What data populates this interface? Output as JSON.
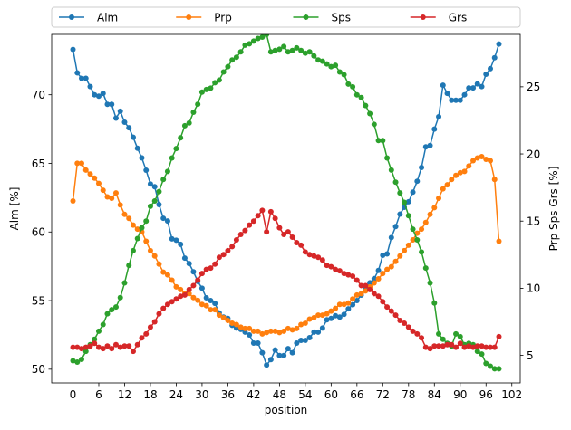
{
  "chart_data": {
    "type": "line",
    "xlabel": "position",
    "ylabel_left": "Alm [%]",
    "ylabel_right": "Prp Sps Grs [%]",
    "x_ticks": [
      0,
      6,
      12,
      18,
      24,
      30,
      36,
      42,
      48,
      54,
      60,
      66,
      72,
      78,
      84,
      90,
      96,
      102
    ],
    "y_left_ticks": [
      50,
      55,
      60,
      65,
      70
    ],
    "y_right_ticks": [
      5,
      10,
      15,
      20,
      25
    ],
    "xlim": [
      -4.95,
      103.95
    ],
    "ylim_left": [
      49.0,
      74.4
    ],
    "ylim_right": [
      2.95,
      28.9
    ],
    "grid": false,
    "legend": {
      "placement": "top, above plot",
      "columns": 4
    },
    "marker": "circle",
    "series": [
      {
        "name": "Alm",
        "axis": "left",
        "color": "#1f77b4",
        "x": [
          0,
          1,
          2,
          3,
          4,
          5,
          6,
          7,
          8,
          9,
          10,
          11,
          12,
          13,
          14,
          15,
          16,
          17,
          18,
          19,
          20,
          21,
          22,
          23,
          24,
          25,
          26,
          27,
          28,
          29,
          30,
          31,
          32,
          33,
          34,
          35,
          36,
          37,
          38,
          39,
          40,
          41,
          42,
          43,
          44,
          45,
          46,
          47,
          48,
          49,
          50,
          51,
          52,
          53,
          54,
          55,
          56,
          57,
          58,
          59,
          60,
          61,
          62,
          63,
          64,
          65,
          66,
          67,
          68,
          69,
          70,
          71,
          72,
          73,
          74,
          75,
          76,
          77,
          78,
          79,
          80,
          81,
          82,
          83,
          84,
          85,
          86,
          87,
          88,
          89,
          90,
          91,
          92,
          93,
          94,
          95,
          96,
          97,
          98,
          99
        ],
        "values": [
          73.3,
          71.6,
          71.2,
          71.2,
          70.6,
          70.0,
          69.9,
          70.1,
          69.3,
          69.3,
          68.3,
          68.8,
          68.0,
          67.6,
          66.9,
          66.1,
          65.4,
          64.5,
          63.5,
          63.3,
          62.0,
          61.0,
          60.8,
          59.5,
          59.4,
          59.1,
          58.1,
          57.7,
          57.1,
          56.4,
          55.9,
          55.2,
          55.0,
          54.8,
          54.1,
          53.8,
          53.7,
          53.2,
          53.0,
          52.9,
          52.7,
          52.5,
          51.9,
          51.9,
          51.2,
          50.3,
          50.7,
          51.4,
          51.0,
          51.0,
          51.5,
          51.2,
          51.9,
          52.1,
          52.1,
          52.3,
          52.7,
          52.7,
          53.0,
          53.6,
          53.7,
          53.9,
          53.8,
          54.0,
          54.4,
          54.7,
          55.0,
          55.4,
          55.9,
          56.3,
          56.6,
          57.2,
          58.3,
          58.4,
          59.6,
          60.4,
          61.3,
          61.8,
          62.2,
          62.9,
          63.7,
          64.7,
          66.2,
          66.3,
          67.5,
          68.4,
          70.7,
          70.1,
          69.6,
          69.6,
          69.6,
          70.0,
          70.5,
          70.5,
          70.8,
          70.6,
          71.5,
          71.9,
          72.7,
          73.7
        ]
      },
      {
        "name": "Prp",
        "axis": "right",
        "color": "#ff7f0e",
        "x": [
          0,
          1,
          2,
          3,
          4,
          5,
          6,
          7,
          8,
          9,
          10,
          11,
          12,
          13,
          14,
          15,
          16,
          17,
          18,
          19,
          20,
          21,
          22,
          23,
          24,
          25,
          26,
          27,
          28,
          29,
          30,
          31,
          32,
          33,
          34,
          35,
          36,
          37,
          38,
          39,
          40,
          41,
          42,
          43,
          44,
          45,
          46,
          47,
          48,
          49,
          50,
          51,
          52,
          53,
          54,
          55,
          56,
          57,
          58,
          59,
          60,
          61,
          62,
          63,
          64,
          65,
          66,
          67,
          68,
          69,
          70,
          71,
          72,
          73,
          74,
          75,
          76,
          77,
          78,
          79,
          80,
          81,
          82,
          83,
          84,
          85,
          86,
          87,
          88,
          89,
          90,
          91,
          92,
          93,
          94,
          95,
          96,
          97,
          98,
          99
        ],
        "values": [
          16.5,
          19.3,
          19.3,
          18.8,
          18.5,
          18.2,
          17.8,
          17.3,
          16.8,
          16.7,
          17.1,
          16.2,
          15.5,
          15.2,
          14.7,
          14.4,
          14.2,
          13.5,
          12.8,
          12.4,
          11.8,
          11.2,
          11.0,
          10.6,
          10.1,
          9.9,
          9.6,
          9.6,
          9.3,
          9.1,
          8.8,
          8.7,
          8.4,
          8.4,
          8.0,
          7.8,
          7.6,
          7.4,
          7.3,
          7.1,
          7.0,
          7.0,
          6.8,
          6.8,
          6.6,
          6.7,
          6.8,
          6.8,
          6.7,
          6.8,
          7.0,
          6.9,
          7.0,
          7.3,
          7.4,
          7.7,
          7.8,
          8.0,
          8.0,
          8.1,
          8.3,
          8.5,
          8.8,
          8.8,
          8.9,
          9.2,
          9.5,
          9.6,
          9.8,
          10.1,
          10.4,
          10.7,
          11.1,
          11.4,
          11.6,
          12.0,
          12.4,
          12.8,
          13.2,
          13.6,
          14.1,
          14.4,
          14.9,
          15.5,
          16.0,
          16.7,
          17.4,
          17.7,
          18.1,
          18.4,
          18.6,
          18.7,
          19.1,
          19.5,
          19.7,
          19.8,
          19.6,
          19.5,
          18.1,
          13.5
        ]
      },
      {
        "name": "Sps",
        "axis": "right",
        "color": "#2ca02c",
        "x": [
          0,
          1,
          2,
          3,
          4,
          5,
          6,
          7,
          8,
          9,
          10,
          11,
          12,
          13,
          14,
          15,
          16,
          17,
          18,
          19,
          20,
          21,
          22,
          23,
          24,
          25,
          26,
          27,
          28,
          29,
          30,
          31,
          32,
          33,
          34,
          35,
          36,
          37,
          38,
          39,
          40,
          41,
          42,
          43,
          44,
          45,
          46,
          47,
          48,
          49,
          50,
          51,
          52,
          53,
          54,
          55,
          56,
          57,
          58,
          59,
          60,
          61,
          62,
          63,
          64,
          65,
          66,
          67,
          68,
          69,
          70,
          71,
          72,
          73,
          74,
          75,
          76,
          77,
          78,
          79,
          80,
          81,
          82,
          83,
          84,
          85,
          86,
          87,
          88,
          89,
          90,
          91,
          92,
          93,
          94,
          95,
          96,
          97,
          98,
          99
        ],
        "values": [
          4.6,
          4.5,
          4.7,
          5.3,
          5.8,
          6.2,
          6.8,
          7.3,
          8.1,
          8.4,
          8.6,
          9.3,
          10.4,
          11.7,
          12.8,
          13.7,
          14.5,
          15.0,
          16.1,
          16.5,
          17.2,
          18.1,
          18.7,
          19.7,
          20.4,
          21.2,
          22.1,
          22.3,
          23.1,
          23.7,
          24.6,
          24.8,
          24.9,
          25.3,
          25.5,
          26.1,
          26.5,
          27.0,
          27.2,
          27.6,
          28.1,
          28.2,
          28.4,
          28.6,
          28.7,
          28.9,
          27.6,
          27.7,
          27.8,
          28.0,
          27.6,
          27.7,
          27.9,
          27.7,
          27.5,
          27.6,
          27.3,
          27.0,
          26.9,
          26.7,
          26.5,
          26.6,
          26.1,
          25.9,
          25.2,
          25.0,
          24.4,
          24.2,
          23.6,
          23.0,
          22.2,
          21.0,
          21.0,
          19.7,
          18.8,
          17.9,
          17.1,
          16.4,
          15.4,
          14.4,
          13.6,
          12.7,
          11.5,
          10.4,
          8.9,
          6.6,
          6.2,
          5.9,
          5.7,
          6.6,
          6.4,
          5.8,
          5.9,
          5.8,
          5.3,
          5.1,
          4.4,
          4.2,
          4.0,
          4.0
        ]
      },
      {
        "name": "Grs",
        "axis": "right",
        "color": "#d62728",
        "x": [
          0,
          1,
          2,
          3,
          4,
          5,
          6,
          7,
          8,
          9,
          10,
          11,
          12,
          13,
          14,
          15,
          16,
          17,
          18,
          19,
          20,
          21,
          22,
          23,
          24,
          25,
          26,
          27,
          28,
          29,
          30,
          31,
          32,
          33,
          34,
          35,
          36,
          37,
          38,
          39,
          40,
          41,
          42,
          43,
          44,
          45,
          46,
          47,
          48,
          49,
          50,
          51,
          52,
          53,
          54,
          55,
          56,
          57,
          58,
          59,
          60,
          61,
          62,
          63,
          64,
          65,
          66,
          67,
          68,
          69,
          70,
          71,
          72,
          73,
          74,
          75,
          76,
          77,
          78,
          79,
          80,
          81,
          82,
          83,
          84,
          85,
          86,
          87,
          88,
          89,
          90,
          91,
          92,
          93,
          94,
          95,
          96,
          97,
          98,
          99
        ],
        "values": [
          5.6,
          5.6,
          5.5,
          5.6,
          5.7,
          5.9,
          5.6,
          5.5,
          5.7,
          5.5,
          5.8,
          5.6,
          5.7,
          5.7,
          5.3,
          5.8,
          6.3,
          6.6,
          7.1,
          7.5,
          8.1,
          8.5,
          8.8,
          9.0,
          9.2,
          9.4,
          9.5,
          9.9,
          10.2,
          10.6,
          11.1,
          11.4,
          11.5,
          11.8,
          12.3,
          12.5,
          12.8,
          13.1,
          13.6,
          14.0,
          14.3,
          14.7,
          15.0,
          15.4,
          15.8,
          14.2,
          15.7,
          15.2,
          14.5,
          14.0,
          14.2,
          13.8,
          13.4,
          13.2,
          12.7,
          12.5,
          12.4,
          12.3,
          12.1,
          11.7,
          11.6,
          11.4,
          11.3,
          11.1,
          11.0,
          10.9,
          10.6,
          10.2,
          10.2,
          9.9,
          9.6,
          9.4,
          9.0,
          8.6,
          8.3,
          8.0,
          7.6,
          7.4,
          7.1,
          6.8,
          6.6,
          6.3,
          5.6,
          5.5,
          5.7,
          5.7,
          5.7,
          5.8,
          5.8,
          5.6,
          5.9,
          5.6,
          5.7,
          5.6,
          5.7,
          5.7,
          5.6,
          5.6,
          5.6,
          6.4
        ]
      }
    ]
  }
}
